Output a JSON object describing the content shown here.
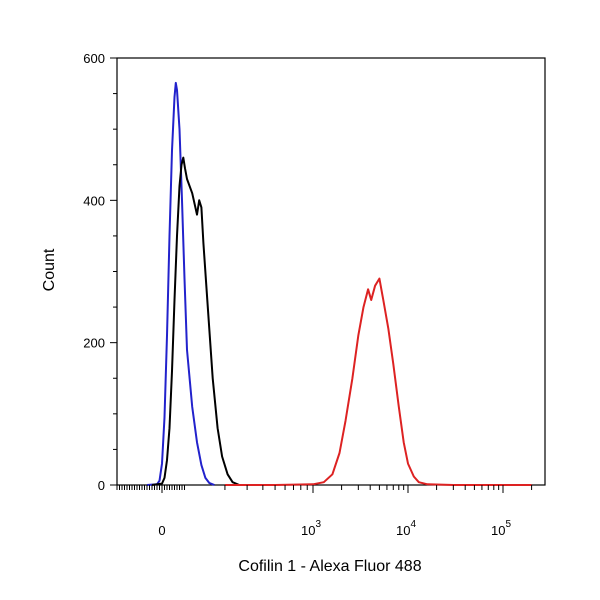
{
  "chart_data": {
    "type": "line",
    "title": "",
    "xlabel": "Cofilin 1 - Alexa Fluor 488",
    "ylabel": "Count",
    "x_scale": "biexponential",
    "ylim": [
      0,
      600
    ],
    "y_ticks": [
      "0",
      "200",
      "400",
      "600"
    ],
    "x_ticks": [
      {
        "base": "0",
        "exp": ""
      },
      {
        "base": "10",
        "exp": "3"
      },
      {
        "base": "10",
        "exp": "4"
      },
      {
        "base": "10",
        "exp": "5"
      }
    ],
    "grid": false,
    "legend": "none",
    "series": [
      {
        "color": "#2222cc",
        "points": [
          [
            -60,
            0
          ],
          [
            -20,
            1
          ],
          [
            -10,
            6
          ],
          [
            0,
            30
          ],
          [
            10,
            95
          ],
          [
            20,
            210
          ],
          [
            30,
            350
          ],
          [
            40,
            470
          ],
          [
            50,
            545
          ],
          [
            55,
            565
          ],
          [
            60,
            555
          ],
          [
            70,
            500
          ],
          [
            80,
            400
          ],
          [
            90,
            290
          ],
          [
            100,
            190
          ],
          [
            110,
            110
          ],
          [
            120,
            60
          ],
          [
            130,
            28
          ],
          [
            140,
            10
          ],
          [
            150,
            3
          ],
          [
            165,
            0
          ]
        ]
      },
      {
        "color": "#000000",
        "points": [
          [
            -40,
            0
          ],
          [
            0,
            2
          ],
          [
            10,
            10
          ],
          [
            20,
            35
          ],
          [
            30,
            80
          ],
          [
            40,
            160
          ],
          [
            50,
            260
          ],
          [
            60,
            350
          ],
          [
            70,
            420
          ],
          [
            78,
            450
          ],
          [
            85,
            460
          ],
          [
            92,
            445
          ],
          [
            100,
            430
          ],
          [
            110,
            410
          ],
          [
            120,
            380
          ],
          [
            125,
            400
          ],
          [
            130,
            390
          ],
          [
            135,
            340
          ],
          [
            145,
            260
          ],
          [
            160,
            150
          ],
          [
            175,
            80
          ],
          [
            190,
            40
          ],
          [
            210,
            15
          ],
          [
            230,
            4
          ],
          [
            260,
            0
          ]
        ]
      },
      {
        "color": "#dd2222",
        "points": [
          [
            200,
            0
          ],
          [
            500,
            0
          ],
          [
            1000,
            1
          ],
          [
            1300,
            4
          ],
          [
            1600,
            15
          ],
          [
            1900,
            45
          ],
          [
            2200,
            90
          ],
          [
            2600,
            150
          ],
          [
            3000,
            210
          ],
          [
            3400,
            250
          ],
          [
            3800,
            275
          ],
          [
            4100,
            260
          ],
          [
            4500,
            280
          ],
          [
            5000,
            290
          ],
          [
            5500,
            260
          ],
          [
            6200,
            220
          ],
          [
            7000,
            170
          ],
          [
            8000,
            110
          ],
          [
            9000,
            60
          ],
          [
            10000,
            30
          ],
          [
            11500,
            12
          ],
          [
            13000,
            4
          ],
          [
            16000,
            1
          ],
          [
            30000,
            0
          ],
          [
            200000,
            0
          ]
        ]
      }
    ]
  }
}
